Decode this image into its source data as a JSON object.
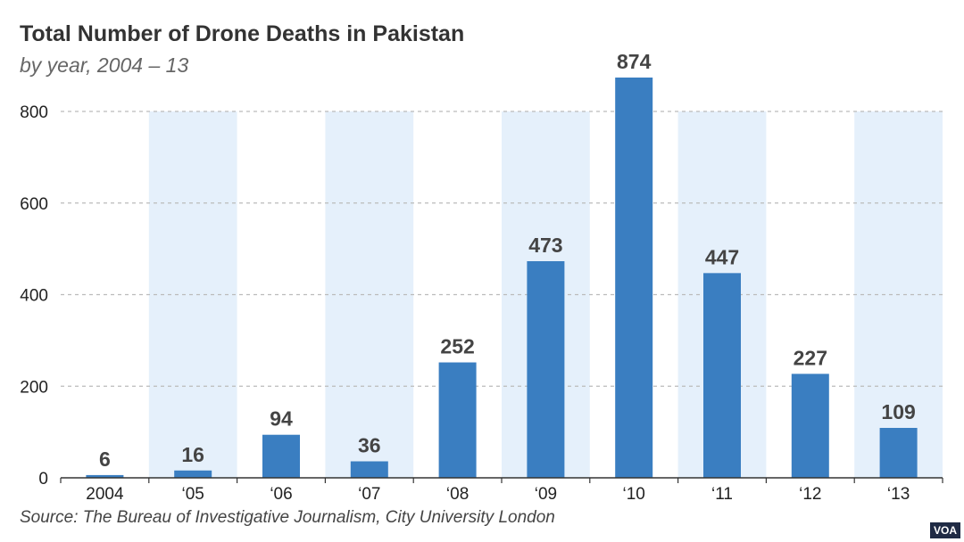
{
  "title": "Total Number of Drone Deaths in Pakistan",
  "subtitle": "by year, 2004 – 13",
  "source": "Source: The Bureau of Investigative Journalism, City University London",
  "badge": "VOA",
  "colors": {
    "bar": "#3a7ec1",
    "band": "#e5f0fb",
    "grid": "#bbbbbb",
    "axis": "#333333"
  },
  "chart_data": {
    "type": "bar",
    "categories": [
      "2004",
      "‘05",
      "‘06",
      "‘07",
      "‘08",
      "‘09",
      "‘10",
      "‘11",
      "‘12",
      "‘13"
    ],
    "values": [
      6,
      16,
      94,
      36,
      252,
      473,
      874,
      447,
      227,
      109
    ],
    "yticks": [
      0,
      200,
      400,
      600,
      800
    ],
    "ylim": [
      0,
      900
    ],
    "grid": true,
    "alternating_bands": true
  }
}
